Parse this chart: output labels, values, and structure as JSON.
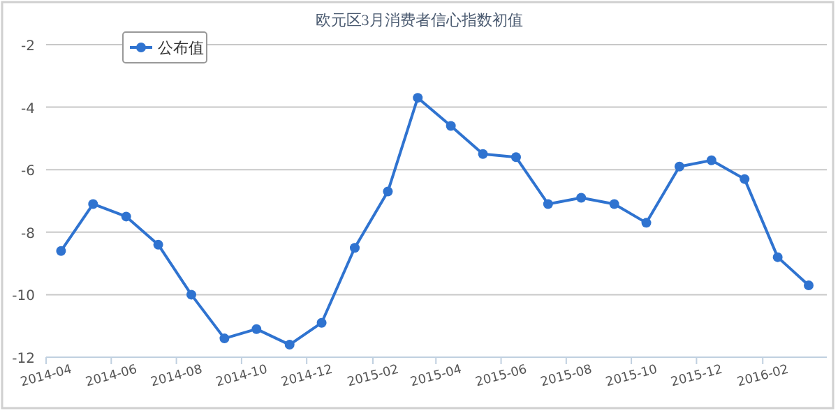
{
  "chart_data": {
    "type": "line",
    "title": "欧元区3月消费者信心指数初值",
    "x": [
      "2014-04-15",
      "2014-05-15",
      "2014-06-15",
      "2014-07-15",
      "2014-08-15",
      "2014-09-15",
      "2014-10-15",
      "2014-11-15",
      "2014-12-15",
      "2015-01-15",
      "2015-02-15",
      "2015-03-15",
      "2015-04-15",
      "2015-05-15",
      "2015-06-15",
      "2015-07-15",
      "2015-08-15",
      "2015-09-15",
      "2015-10-15",
      "2015-11-15",
      "2015-12-15",
      "2016-01-15",
      "2016-02-15",
      "2016-03-15"
    ],
    "series": [
      {
        "name": "公布值",
        "color": "#2f73d0",
        "values": [
          -8.6,
          -7.1,
          -7.5,
          -8.4,
          -10.0,
          -11.4,
          -11.1,
          -11.6,
          -10.9,
          -8.5,
          -6.7,
          -3.7,
          -4.6,
          -5.5,
          -5.6,
          -7.1,
          -6.9,
          -7.1,
          -7.7,
          -5.9,
          -5.7,
          -6.3,
          -8.8,
          -9.7
        ]
      }
    ],
    "xlim": [
      "2014-04-01",
      "2016-04-01"
    ],
    "xticks": [
      "2014-04",
      "2014-06",
      "2014-08",
      "2014-10",
      "2014-12",
      "2015-02",
      "2015-04",
      "2015-06",
      "2015-08",
      "2015-10",
      "2015-12",
      "2016-02"
    ],
    "ylim": [
      -12,
      -2
    ],
    "yticks": [
      -12,
      -10,
      -8,
      -6,
      -4,
      -2
    ],
    "grid": "y",
    "legend": "top left",
    "marker": "circle",
    "line_style": "solid"
  }
}
